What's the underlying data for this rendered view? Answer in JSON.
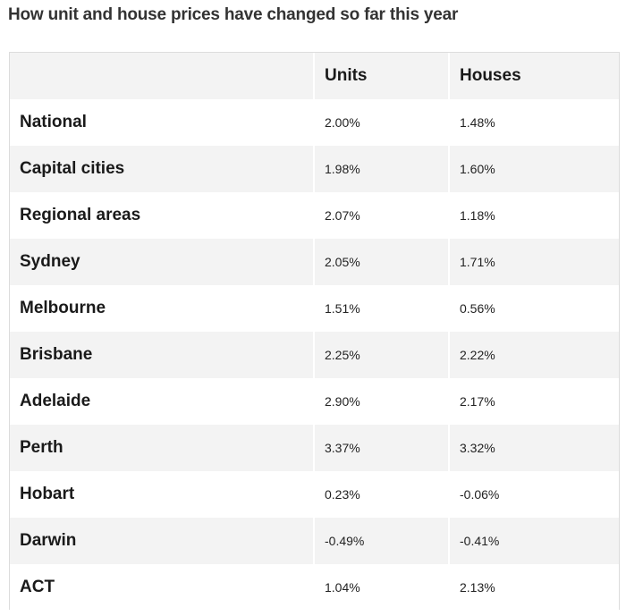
{
  "title": "How unit and house prices have changed so far this year",
  "table": {
    "headers": [
      "",
      "Units",
      "Houses"
    ],
    "rows": [
      {
        "region": "National",
        "units": "2.00%",
        "houses": "1.48%"
      },
      {
        "region": "Capital cities",
        "units": "1.98%",
        "houses": "1.60%"
      },
      {
        "region": "Regional areas",
        "units": "2.07%",
        "houses": "1.18%"
      },
      {
        "region": "Sydney",
        "units": "2.05%",
        "houses": "1.71%"
      },
      {
        "region": "Melbourne",
        "units": "1.51%",
        "houses": "0.56%"
      },
      {
        "region": "Brisbane",
        "units": "2.25%",
        "houses": "2.22%"
      },
      {
        "region": "Adelaide",
        "units": "2.90%",
        "houses": "2.17%"
      },
      {
        "region": "Perth",
        "units": "3.37%",
        "houses": "3.32%"
      },
      {
        "region": "Hobart",
        "units": "0.23%",
        "houses": "-0.06%"
      },
      {
        "region": "Darwin",
        "units": "-0.49%",
        "houses": "-0.41%"
      },
      {
        "region": "ACT",
        "units": "1.04%",
        "houses": "2.13%"
      }
    ]
  },
  "colors": {
    "stripe": "#f3f3f3",
    "text": "#1a1a1a",
    "title": "#333333"
  }
}
